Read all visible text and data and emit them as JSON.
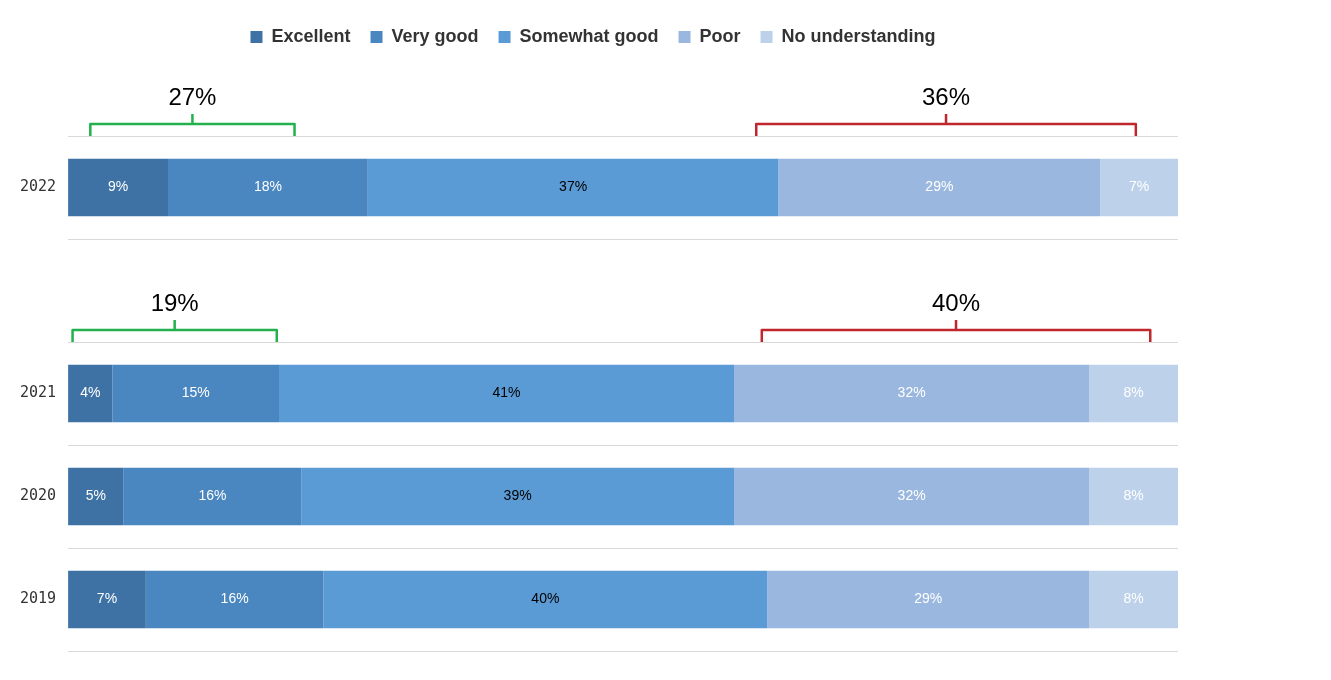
{
  "chart_data": {
    "type": "bar",
    "orientation": "horizontal",
    "stacked": true,
    "categories": [
      "2022",
      null,
      "2021",
      "2020",
      "2019"
    ],
    "series": [
      {
        "name": "Excellent",
        "color": "#3f72a4",
        "values": [
          9,
          null,
          4,
          5,
          7
        ],
        "value_labels": [
          "9%",
          null,
          "4%",
          "5%",
          "7%"
        ]
      },
      {
        "name": "Very good",
        "color": "#4a86c0",
        "values": [
          18,
          null,
          15,
          16,
          16
        ],
        "value_labels": [
          "18%",
          null,
          "15%",
          "16%",
          "16%"
        ]
      },
      {
        "name": "Somewhat good",
        "color": "#5b9bd5",
        "values": [
          37,
          null,
          41,
          39,
          40
        ],
        "value_labels": [
          "37%",
          null,
          "41%",
          "39%",
          "40%"
        ]
      },
      {
        "name": "Poor",
        "color": "#9ab8df",
        "values": [
          29,
          null,
          32,
          32,
          29
        ],
        "value_labels": [
          "29%",
          null,
          "32%",
          "32%",
          "29%"
        ]
      },
      {
        "name": "No understanding",
        "color": "#bdd1ea",
        "values": [
          7,
          null,
          8,
          8,
          8
        ],
        "value_labels": [
          "7%",
          null,
          "8%",
          "8%",
          "8%"
        ]
      }
    ],
    "annotations": [
      "27%",
      "36%",
      "19%",
      "40%"
    ],
    "legend": "top",
    "grid": "y"
  }
}
